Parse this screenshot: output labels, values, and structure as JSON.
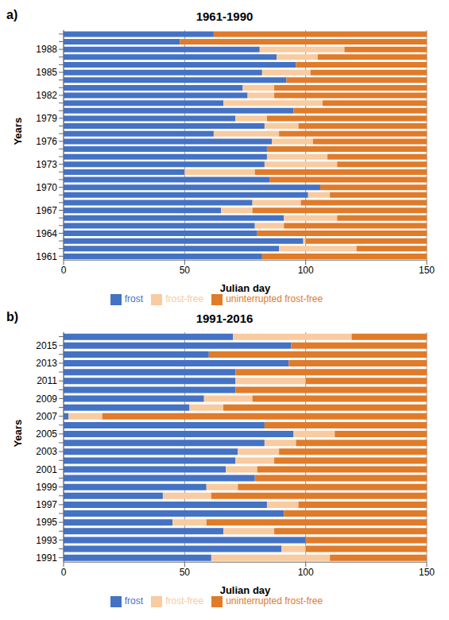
{
  "chart_data": [
    {
      "type": "bar",
      "orientation": "horizontal",
      "stacked": true,
      "grid": true,
      "legend": "bottom",
      "title": "1961-1990",
      "annotations": [
        "a)"
      ],
      "x_label": "Julian day",
      "y_label": "Years",
      "categories": [
        "1961",
        null,
        null,
        "1964",
        null,
        null,
        "1967",
        null,
        null,
        "1970",
        null,
        null,
        "1973",
        null,
        null,
        "1976",
        null,
        null,
        "1979",
        null,
        null,
        "1982",
        null,
        null,
        "1985",
        null,
        null,
        "1988",
        null,
        null
      ],
      "xlim": [
        0,
        150
      ],
      "xticks": [
        0,
        50,
        100,
        150
      ],
      "series": [
        {
          "name": "frost",
          "color": "#4472c4",
          "values": [
            82,
            89,
            99,
            80,
            79,
            91,
            65,
            78,
            101,
            106,
            85,
            50,
            83,
            84,
            84,
            86,
            62,
            83,
            71,
            95,
            66,
            76,
            74,
            92,
            82,
            96,
            88,
            81,
            48,
            62
          ]
        },
        {
          "name": "frost-free",
          "color": "#f8cba0",
          "values": [
            0,
            32,
            1,
            0,
            12,
            22,
            13,
            20,
            9,
            0,
            0,
            29,
            30,
            25,
            0,
            17,
            27,
            14,
            13,
            0,
            41,
            11,
            13,
            0,
            20,
            0,
            17,
            35,
            0,
            0
          ]
        },
        {
          "name": "uninterrupted frost-free",
          "color": "#e07b2a",
          "values": [
            68,
            29,
            50,
            70,
            59,
            37,
            72,
            52,
            40,
            44,
            65,
            71,
            37,
            41,
            66,
            47,
            61,
            53,
            66,
            55,
            43,
            63,
            63,
            58,
            48,
            54,
            45,
            34,
            102,
            88
          ]
        }
      ]
    },
    {
      "type": "bar",
      "orientation": "horizontal",
      "stacked": true,
      "grid": true,
      "legend": "bottom",
      "title": "1991-2016",
      "annotations": [
        "b)"
      ],
      "x_label": "Julian day",
      "y_label": "Years",
      "categories": [
        "1991",
        null,
        "1993",
        null,
        "1995",
        null,
        "1997",
        null,
        "1999",
        null,
        "2001",
        null,
        "2003",
        null,
        "2005",
        null,
        "2007",
        null,
        "2009",
        null,
        "2011",
        null,
        "2013",
        null,
        "2015",
        null
      ],
      "xlim": [
        0,
        150
      ],
      "xticks": [
        0,
        50,
        100,
        150
      ],
      "series": [
        {
          "name": "frost",
          "color": "#4472c4",
          "values": [
            61,
            90,
            100,
            66,
            45,
            91,
            84,
            41,
            59,
            79,
            67,
            71,
            72,
            83,
            95,
            83,
            2,
            52,
            58,
            71,
            71,
            71,
            93,
            60,
            94,
            70
          ]
        },
        {
          "name": "frost-free",
          "color": "#f8cba0",
          "values": [
            49,
            10,
            0,
            21,
            14,
            0,
            13,
            20,
            13,
            0,
            13,
            16,
            17,
            13,
            17,
            0,
            14,
            14,
            20,
            0,
            29,
            0,
            0,
            0,
            0,
            49
          ]
        },
        {
          "name": "uninterrupted frost-free",
          "color": "#e07b2a",
          "values": [
            40,
            50,
            50,
            63,
            91,
            59,
            53,
            89,
            78,
            71,
            70,
            63,
            61,
            54,
            38,
            67,
            134,
            84,
            72,
            79,
            50,
            79,
            57,
            90,
            56,
            31
          ]
        }
      ]
    }
  ]
}
